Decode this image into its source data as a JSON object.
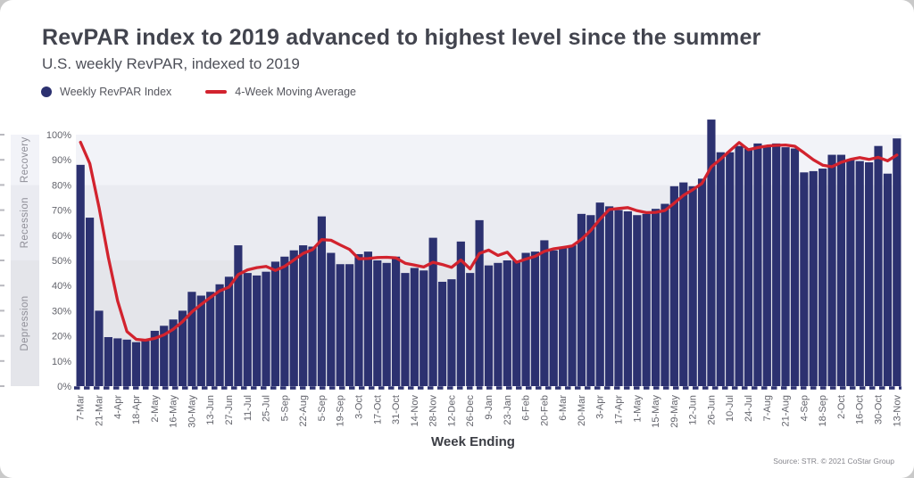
{
  "header": {
    "title": "RevPAR index to 2019 advanced to highest level since the summer",
    "subtitle": "U.S. weekly RevPAR, indexed to 2019"
  },
  "legend": {
    "items": [
      {
        "label": "Weekly RevPAR Index",
        "marker": "dot",
        "color": "#2c3170"
      },
      {
        "label": "4-Week Moving Average",
        "marker": "line",
        "color": "#d2232e"
      }
    ]
  },
  "footer": {
    "xaxis_title": "Week Ending",
    "source": "Source: STR. © 2021 CoStar Group"
  },
  "chart_data": {
    "type": "bar",
    "title": "RevPAR index to 2019 advanced to highest level since the summer",
    "subtitle": "U.S. weekly RevPAR, indexed to 2019",
    "xlabel": "Week Ending",
    "ylabel": "",
    "ylim": [
      0,
      100
    ],
    "grid": false,
    "legend_position": "top-left",
    "y_tick_labels": [
      "0%",
      "10%",
      "20%",
      "30%",
      "40%",
      "50%",
      "60%",
      "70%",
      "80%",
      "90%",
      "100%"
    ],
    "x_tick_every": 2,
    "x_tick_labels": [
      "7-Mar",
      "21-Mar",
      "4-Apr",
      "18-Apr",
      "2-May",
      "16-May",
      "30-May",
      "13-Jun",
      "27-Jun",
      "11-Jul",
      "25-Jul",
      "5-Sep",
      "22-Aug",
      "5-Sep",
      "19-Sep",
      "3-Oct",
      "17-Oct",
      "31-Oct",
      "14-Nov",
      "28-Nov",
      "12-Dec",
      "26-Dec",
      "9-Jan",
      "23-Jan",
      "6-Feb",
      "20-Feb",
      "6-Mar",
      "20-Mar",
      "3-Apr",
      "17-Apr",
      "1-May",
      "15-May",
      "29-May",
      "12-Jun",
      "26-Jun",
      "10-Jul",
      "24-Jul",
      "7-Aug",
      "21-Aug",
      "4-Sep",
      "18-Sep",
      "2-Oct",
      "16-Oct",
      "30-Oct",
      "13-Nov"
    ],
    "series": [
      {
        "name": "Weekly RevPAR Index",
        "type": "bar",
        "color": "#2c3170",
        "values": [
          88,
          67,
          30,
          19.5,
          19,
          18.5,
          17.5,
          18,
          22,
          24,
          26.5,
          30,
          37.5,
          36,
          37.5,
          40.5,
          43.5,
          56,
          45,
          44,
          45.5,
          49.5,
          51.5,
          54,
          56,
          55.5,
          67.5,
          53,
          48.5,
          48.5,
          52.5,
          53.5,
          50,
          49,
          51.5,
          45,
          47,
          46,
          59,
          41.5,
          42.5,
          57.5,
          45,
          66,
          48,
          49,
          50,
          50,
          53,
          53.5,
          58,
          54,
          55,
          56,
          68.5,
          68,
          73,
          71.5,
          70,
          69.5,
          68,
          68.5,
          70.5,
          72.5,
          79.5,
          81,
          79.5,
          82.5,
          106,
          93,
          93,
          95.5,
          94.5,
          96.5,
          95.5,
          96.5,
          95,
          94.5,
          85,
          85.5,
          86.5,
          92,
          92,
          90,
          89.5,
          89,
          95.5,
          84.5,
          98.5
        ]
      },
      {
        "name": "4-Week Moving Average",
        "type": "line",
        "color": "#d2232e",
        "derived": "trailing 4-week moving average of Weekly RevPAR Index",
        "prepad_values": [
          101,
          100,
          99
        ]
      }
    ],
    "bands": [
      {
        "label": "Depression",
        "from": 0,
        "to": 50,
        "color": "#e4e5ea"
      },
      {
        "label": "Recession",
        "from": 50,
        "to": 80,
        "color": "#eaebf1"
      },
      {
        "label": "Recovery",
        "from": 80,
        "to": 100,
        "color": "#f2f3f8"
      }
    ],
    "band_label_color": "#8f8f98",
    "axis_dash_color": "#2c3170",
    "tick_label_color": "#63646c"
  }
}
